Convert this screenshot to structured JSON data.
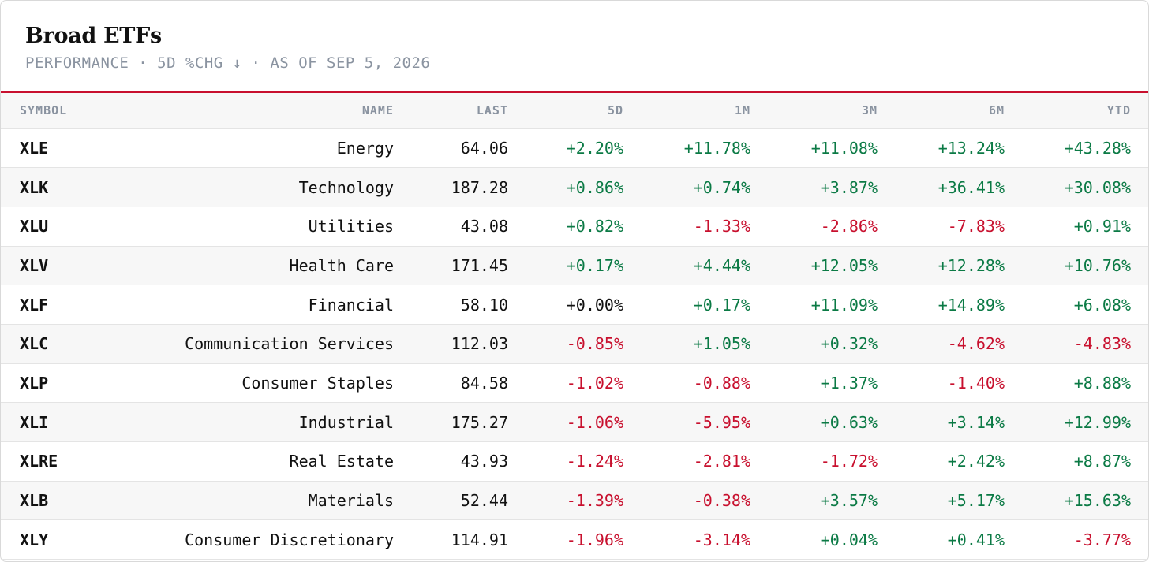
{
  "header": {
    "title": "Broad ETFs",
    "subtitle": "PERFORMANCE · 5D %CHG ↓ · AS OF SEP 5, 2026"
  },
  "colors": {
    "positive": "#0b7a45",
    "negative": "#c8102e",
    "accent": "#c8102e"
  },
  "table": {
    "columns": [
      "SYMBOL",
      "NAME",
      "LAST",
      "5D",
      "1M",
      "3M",
      "6M",
      "YTD"
    ],
    "rows": [
      {
        "symbol": "XLE",
        "name": "Energy",
        "last": "64.06",
        "d5": "+2.20%",
        "m1": "+11.78%",
        "m3": "+11.08%",
        "m6": "+13.24%",
        "ytd": "+43.28%"
      },
      {
        "symbol": "XLK",
        "name": "Technology",
        "last": "187.28",
        "d5": "+0.86%",
        "m1": "+0.74%",
        "m3": "+3.87%",
        "m6": "+36.41%",
        "ytd": "+30.08%"
      },
      {
        "symbol": "XLU",
        "name": "Utilities",
        "last": "43.08",
        "d5": "+0.82%",
        "m1": "-1.33%",
        "m3": "-2.86%",
        "m6": "-7.83%",
        "ytd": "+0.91%"
      },
      {
        "symbol": "XLV",
        "name": "Health Care",
        "last": "171.45",
        "d5": "+0.17%",
        "m1": "+4.44%",
        "m3": "+12.05%",
        "m6": "+12.28%",
        "ytd": "+10.76%"
      },
      {
        "symbol": "XLF",
        "name": "Financial",
        "last": "58.10",
        "d5": "+0.00%",
        "m1": "+0.17%",
        "m3": "+11.09%",
        "m6": "+14.89%",
        "ytd": "+6.08%"
      },
      {
        "symbol": "XLC",
        "name": "Communication Services",
        "last": "112.03",
        "d5": "-0.85%",
        "m1": "+1.05%",
        "m3": "+0.32%",
        "m6": "-4.62%",
        "ytd": "-4.83%"
      },
      {
        "symbol": "XLP",
        "name": "Consumer Staples",
        "last": "84.58",
        "d5": "-1.02%",
        "m1": "-0.88%",
        "m3": "+1.37%",
        "m6": "-1.40%",
        "ytd": "+8.88%"
      },
      {
        "symbol": "XLI",
        "name": "Industrial",
        "last": "175.27",
        "d5": "-1.06%",
        "m1": "-5.95%",
        "m3": "+0.63%",
        "m6": "+3.14%",
        "ytd": "+12.99%"
      },
      {
        "symbol": "XLRE",
        "name": "Real Estate",
        "last": "43.93",
        "d5": "-1.24%",
        "m1": "-2.81%",
        "m3": "-1.72%",
        "m6": "+2.42%",
        "ytd": "+8.87%"
      },
      {
        "symbol": "XLB",
        "name": "Materials",
        "last": "52.44",
        "d5": "-1.39%",
        "m1": "-0.38%",
        "m3": "+3.57%",
        "m6": "+5.17%",
        "ytd": "+15.63%"
      },
      {
        "symbol": "XLY",
        "name": "Consumer Discretionary",
        "last": "114.91",
        "d5": "-1.96%",
        "m1": "-3.14%",
        "m3": "+0.04%",
        "m6": "+0.41%",
        "ytd": "-3.77%"
      }
    ]
  }
}
